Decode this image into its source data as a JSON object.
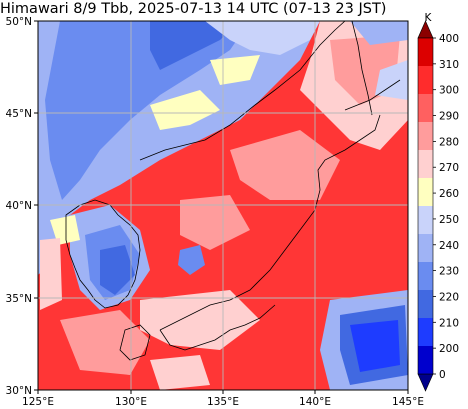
{
  "title": "Himawari 8/9 Tbb, 2025-07-13 14 UTC (07-13 23 JST)",
  "map": {
    "lon_range": [
      125,
      145
    ],
    "lat_range": [
      30,
      50
    ],
    "lon_ticks": [
      "125°E",
      "130°E",
      "135°E",
      "140°E",
      "145°E"
    ],
    "lat_ticks": [
      "30°N",
      "35°N",
      "40°N",
      "45°N",
      "50°N"
    ],
    "gridlines": true
  },
  "colorbar": {
    "unit": "K",
    "ticks": [
      "0",
      "200",
      "210",
      "220",
      "230",
      "240",
      "250",
      "260",
      "270",
      "280",
      "290",
      "300",
      "310",
      "400"
    ],
    "colors": [
      "#00008b",
      "#0000cd",
      "#1e3cff",
      "#4169e1",
      "#6a8cf0",
      "#9fb3f5",
      "#c9d3fa",
      "#ffffc0",
      "#ffd0d0",
      "#ff9c9c",
      "#ff6060",
      "#ff2c2c",
      "#dc0000",
      "#8b0000"
    ],
    "extend": "both"
  }
}
